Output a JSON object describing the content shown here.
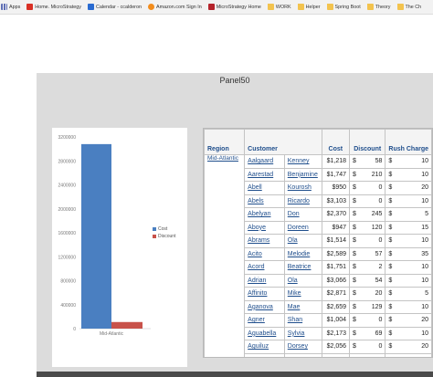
{
  "bookmarks": [
    {
      "label": "Apps",
      "icon": "apps-icon"
    },
    {
      "label": "Home. MicroStrategy",
      "icon": "microstrategy-icon"
    },
    {
      "label": "Calendar - ccalderon",
      "icon": "outlook-icon"
    },
    {
      "label": "Amazon.com Sign In",
      "icon": "amazon-icon"
    },
    {
      "label": "MicroStrategy Home",
      "icon": "microstrategy-icon"
    },
    {
      "label": "WORK",
      "icon": "folder-icon"
    },
    {
      "label": "Helper",
      "icon": "folder-icon"
    },
    {
      "label": "Spring Boot",
      "icon": "folder-icon"
    },
    {
      "label": "Theory",
      "icon": "folder-icon"
    },
    {
      "label": "The Ch",
      "icon": "folder-icon"
    }
  ],
  "panel": {
    "title": "Panel50"
  },
  "chart_data": {
    "type": "bar",
    "categories": [
      "Mid-Atlantic"
    ],
    "series": [
      {
        "name": "Cost",
        "values": [
          3080000
        ],
        "color": "#4a7fc1"
      },
      {
        "name": "Discount",
        "values": [
          110000
        ],
        "color": "#c8524a"
      }
    ],
    "ylim": [
      0,
      3200000
    ],
    "yticks": [
      "0",
      "400000",
      "800000",
      "1200000",
      "1600000",
      "2000000",
      "2400000",
      "2800000",
      "3200000"
    ],
    "legend_position": "right",
    "grid": false
  },
  "grid": {
    "headers": {
      "region": "Region",
      "customer": "Customer",
      "cost": "Cost",
      "discount": "Discount",
      "rush": "Rush Charge"
    },
    "region": "Mid-Atlantic",
    "currency": "$",
    "rows": [
      [
        "Aalgaard",
        "Kenney",
        "$1,218",
        "58",
        "10"
      ],
      [
        "Aarestad",
        "Benjamine",
        "$1,747",
        "210",
        "10"
      ],
      [
        "Abell",
        "Kourosh",
        "$950",
        "0",
        "20"
      ],
      [
        "Abels",
        "Ricardo",
        "$3,103",
        "0",
        "10"
      ],
      [
        "Abelyan",
        "Don",
        "$2,370",
        "245",
        "5"
      ],
      [
        "Aboye",
        "Doreen",
        "$947",
        "120",
        "15"
      ],
      [
        "Abrams",
        "Ola",
        "$1,514",
        "0",
        "10"
      ],
      [
        "Acito",
        "Melodie",
        "$2,589",
        "57",
        "35"
      ],
      [
        "Acord",
        "Beatrice",
        "$1,751",
        "2",
        "10"
      ],
      [
        "Adrian",
        "Ola",
        "$3,066",
        "54",
        "10"
      ],
      [
        "Affinito",
        "Mike",
        "$2,871",
        "20",
        "5"
      ],
      [
        "Aganova",
        "Mae",
        "$2,659",
        "129",
        "10"
      ],
      [
        "Agner",
        "Shan",
        "$1,004",
        "0",
        "20"
      ],
      [
        "Aguabella",
        "Sylvia",
        "$2,173",
        "69",
        "10"
      ],
      [
        "Aguiluz",
        "Dorsey",
        "$2,056",
        "0",
        "20"
      ],
      [
        "Aguirre",
        "Diana",
        "$120",
        "0",
        "10"
      ]
    ]
  }
}
